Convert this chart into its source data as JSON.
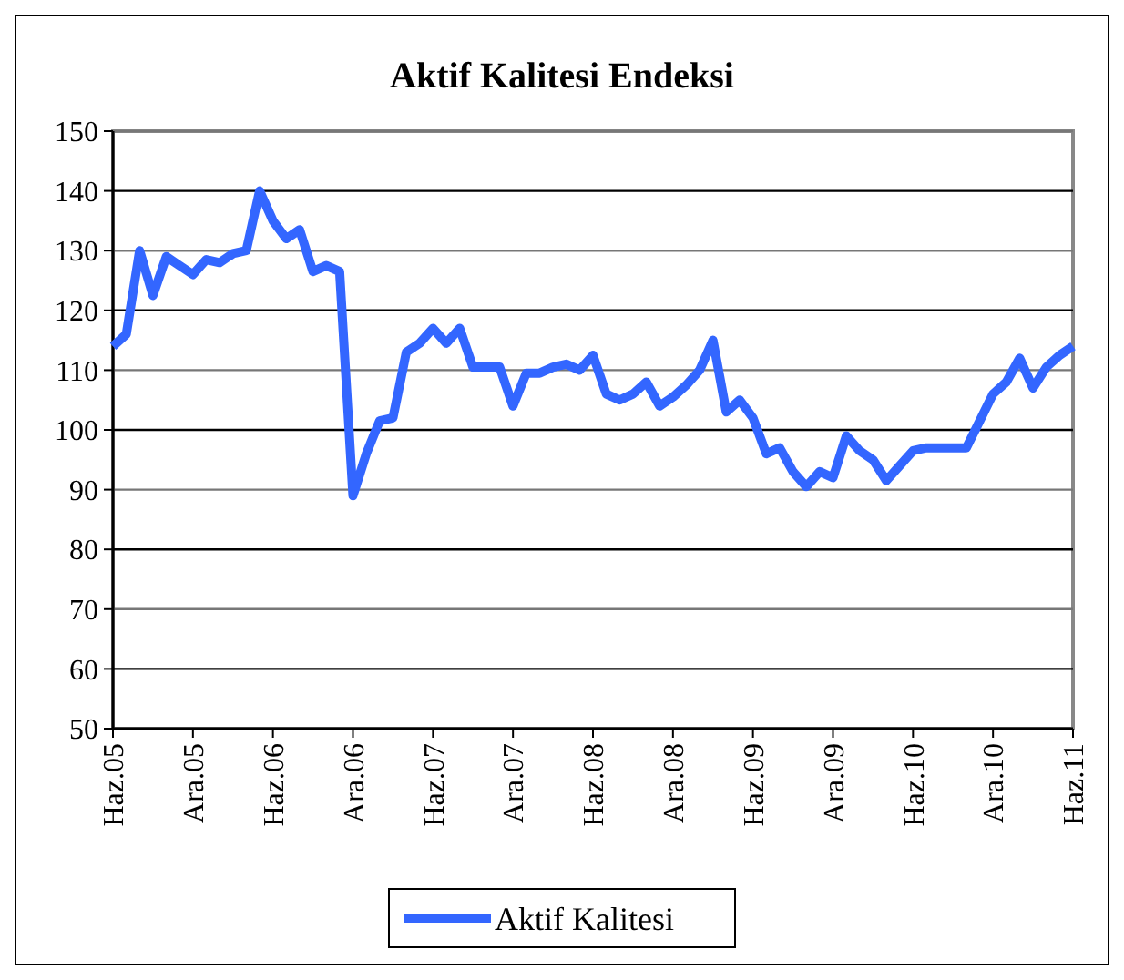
{
  "chart_data": {
    "type": "line",
    "title": "Aktif Kalitesi Endeksi",
    "categories": [
      "Haz.05",
      null,
      null,
      null,
      null,
      null,
      "Ara.05",
      null,
      null,
      null,
      null,
      null,
      "Haz.06",
      null,
      null,
      null,
      null,
      null,
      "Ara.06",
      null,
      null,
      null,
      null,
      null,
      "Haz.07",
      null,
      null,
      null,
      null,
      null,
      "Ara.07",
      null,
      null,
      null,
      null,
      null,
      "Haz.08",
      null,
      null,
      null,
      null,
      null,
      "Ara.08",
      null,
      null,
      null,
      null,
      null,
      "Haz.09",
      null,
      null,
      null,
      null,
      null,
      "Ara.09",
      null,
      null,
      null,
      null,
      null,
      "Haz.10",
      null,
      null,
      null,
      null,
      null,
      "Ara.10",
      null,
      null,
      null,
      null,
      null,
      "Haz.11"
    ],
    "series": [
      {
        "name": "Aktif Kalitesi",
        "color": "#3366ff",
        "values": [
          114,
          116,
          130,
          122.5,
          129,
          127.5,
          126,
          128.5,
          128,
          129.5,
          130,
          140,
          135,
          132,
          133.5,
          126.5,
          127.5,
          126.5,
          89,
          96,
          101.5,
          102,
          113,
          114.5,
          117,
          114.5,
          117,
          110.5,
          110.5,
          110.5,
          104,
          109.5,
          109.5,
          110.5,
          111,
          110,
          112.5,
          106,
          105,
          106,
          108,
          104,
          105.5,
          107.5,
          110,
          115,
          103,
          105,
          102,
          96,
          97,
          93,
          90.5,
          93,
          92,
          99,
          96.5,
          95,
          91.5,
          94,
          96.5,
          97,
          97,
          97,
          97,
          101.5,
          106,
          108,
          112,
          107,
          110.5,
          112.5,
          114
        ]
      }
    ],
    "ylim": [
      50,
      150
    ],
    "yticks": [
      50,
      60,
      70,
      80,
      90,
      100,
      110,
      120,
      130,
      140,
      150
    ],
    "grid": "y",
    "legend": "bottom",
    "marker": "none",
    "line_style": "solid"
  }
}
